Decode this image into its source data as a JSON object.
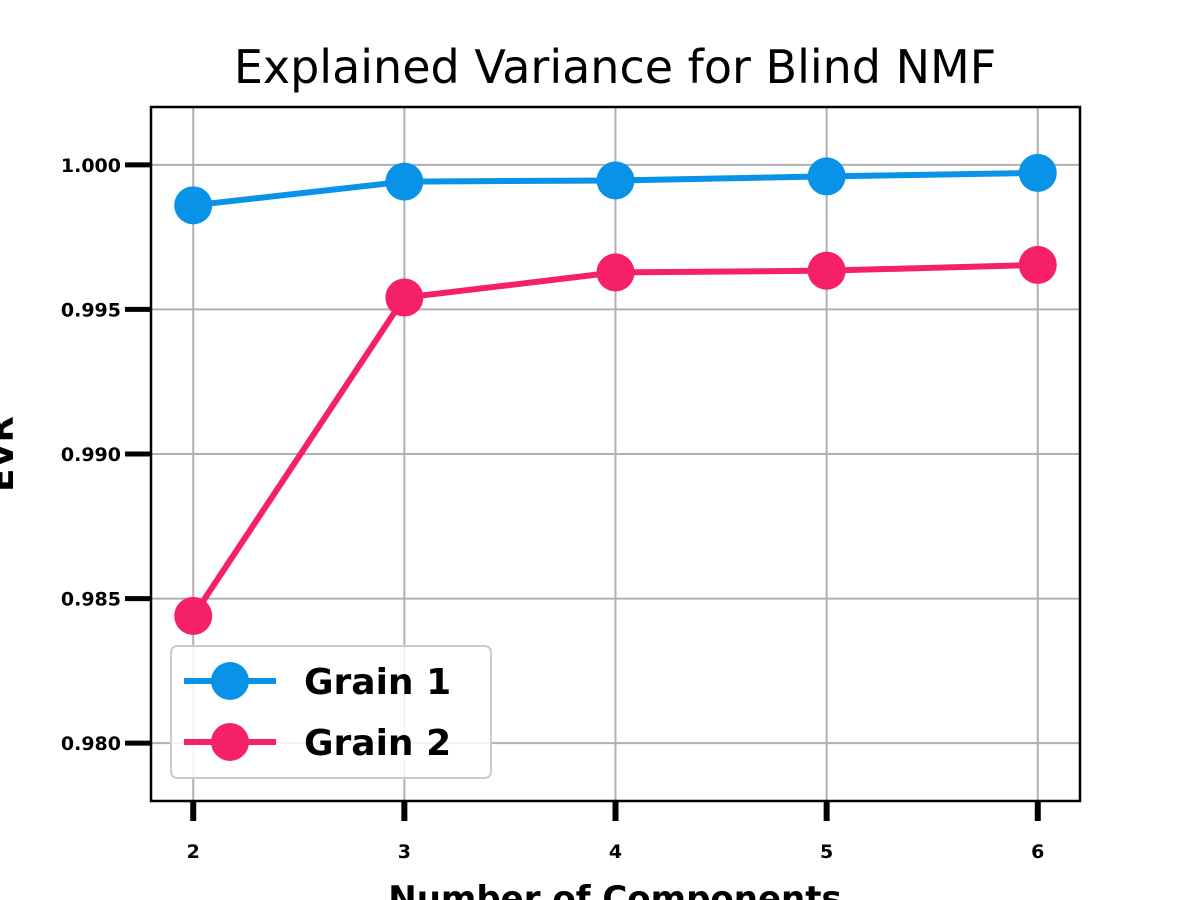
{
  "chart_data": {
    "type": "line",
    "title": "Explained Variance for Blind NMF",
    "xlabel": "Number of Components",
    "ylabel": "EVR",
    "x": [
      2,
      3,
      4,
      5,
      6
    ],
    "xticks": [
      "2",
      "3",
      "4",
      "5",
      "6"
    ],
    "yticks": [
      "0.980",
      "0.985",
      "0.990",
      "0.995",
      "1.000"
    ],
    "ylim": [
      0.978,
      1.002
    ],
    "grid": true,
    "legend_position": "lower-left",
    "series": [
      {
        "name": "Grain 1",
        "color": "#0893e8",
        "values": [
          0.9986,
          0.99942,
          0.99946,
          0.9996,
          0.99972
        ]
      },
      {
        "name": "Grain 2",
        "color": "#f52068",
        "values": [
          0.9844,
          0.99541,
          0.99628,
          0.99634,
          0.99654
        ]
      }
    ]
  }
}
